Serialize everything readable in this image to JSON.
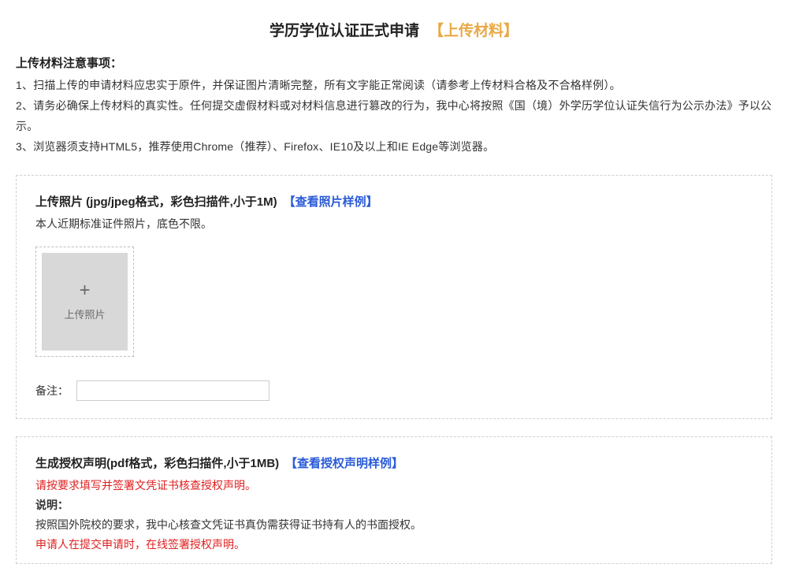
{
  "header": {
    "title_main": "学历学位认证正式申请",
    "title_suffix": "【上传材料】"
  },
  "notice": {
    "heading": "上传材料注意事项：",
    "items": [
      "1、扫描上传的申请材料应忠实于原件，并保证图片清晰完整，所有文字能正常阅读（请参考上传材料合格及不合格样例）。",
      "2、请务必确保上传材料的真实性。任何提交虚假材料或对材料信息进行篡改的行为，我中心将按照《国（境）外学历学位认证失信行为公示办法》予以公示。",
      "3、浏览器须支持HTML5，推荐使用Chrome（推荐）、Firefox、IE10及以上和IE Edge等浏览器。"
    ]
  },
  "photo_section": {
    "title": "上传照片 (jpg/jpeg格式，彩色扫描件,小于1M)",
    "link": "【查看照片样例】",
    "desc": "本人近期标准证件照片，底色不限。",
    "upload_plus": "+",
    "upload_label": "上传照片",
    "remark_label": "备注："
  },
  "auth_section": {
    "title": "生成授权声明(pdf格式，彩色扫描件,小于1MB)",
    "link": "【查看授权声明样例】",
    "desc_red1": "请按要求填写并签署文凭证书核查授权声明。",
    "desc_heading": "说明：",
    "desc_line": "按照国外院校的要求，我中心核查文凭证书真伪需获得证书持有人的书面授权。",
    "desc_red2": "申请人在提交申请时，在线签署授权声明。"
  },
  "colors": {
    "title_orange": "#e8a945",
    "link_blue": "#2a5bd7",
    "warn_red": "#e02020",
    "text_main": "#333333",
    "border_dashed": "#cfcfcf",
    "upload_bg": "#d8d8d8"
  }
}
